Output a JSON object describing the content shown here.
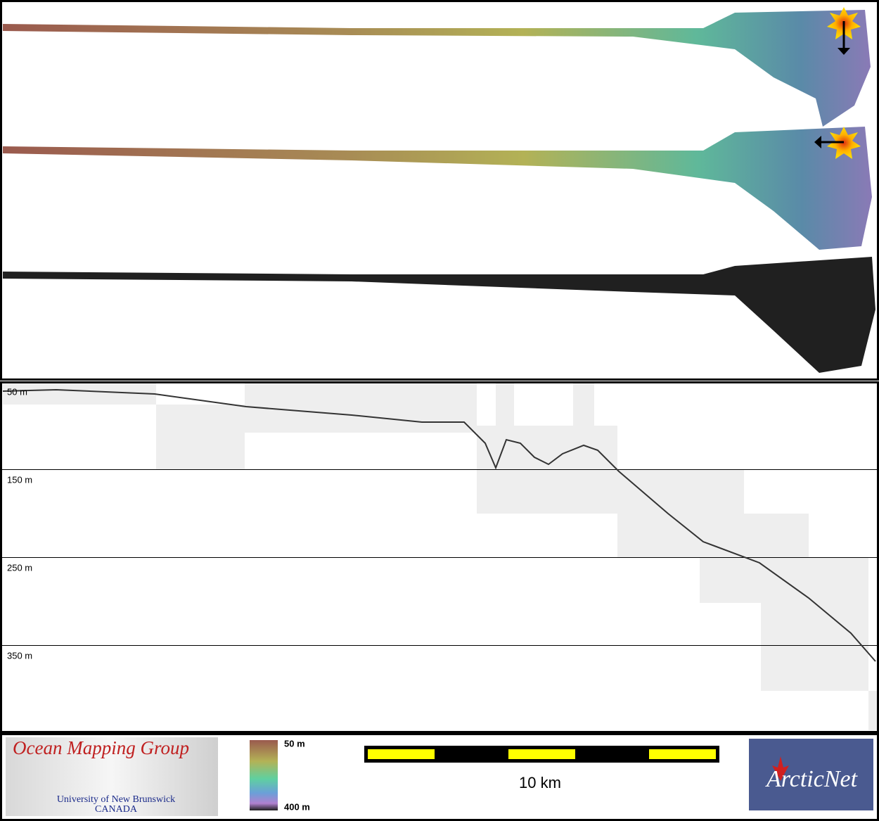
{
  "profile": {
    "depth_labels": [
      "50 m",
      "150 m",
      "250 m",
      "350 m"
    ]
  },
  "footer": {
    "logo": {
      "title": "Ocean Mapping Group",
      "line1": "University of New Brunswick",
      "line2": "CANADA"
    },
    "colorbar": {
      "top": "50 m",
      "bottom": "400 m"
    },
    "scale_bar": {
      "label": "10 km"
    },
    "partner": {
      "name": "ArcticNet"
    }
  }
}
